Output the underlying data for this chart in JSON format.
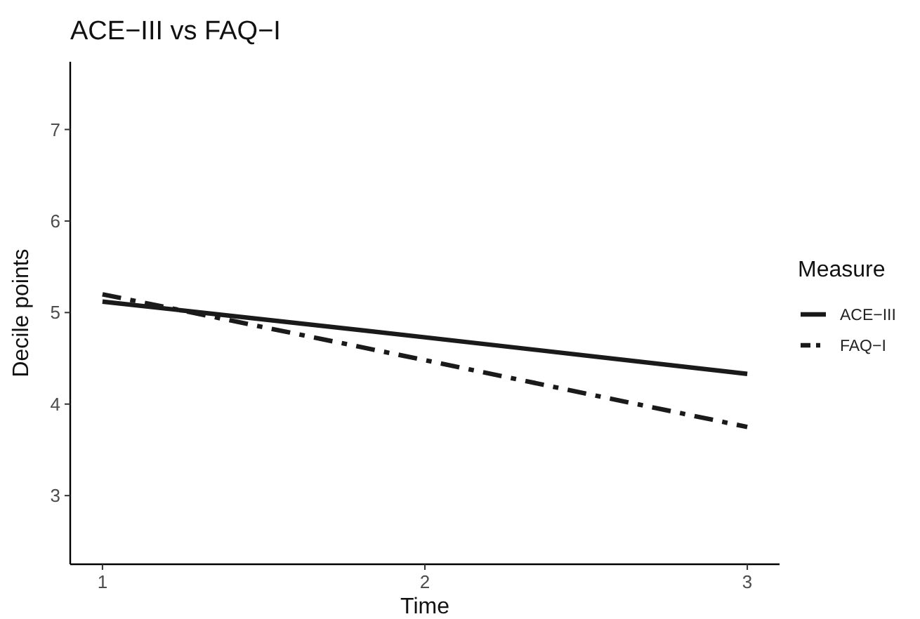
{
  "chart_data": {
    "type": "line",
    "title": "ACE−III vs FAQ−I",
    "xlabel": "Time",
    "ylabel": "Decile points",
    "legend_title": "Measure",
    "legend": "right",
    "grid": false,
    "x": [
      1,
      2,
      3
    ],
    "xlim": [
      0.9,
      3.1
    ],
    "xticks": [
      1,
      2,
      3
    ],
    "ylim": [
      2.25,
      7.74
    ],
    "yticks": [
      3,
      4,
      5,
      6,
      7
    ],
    "series": [
      {
        "name": "ACE−III",
        "color": "#1a1a1a",
        "line_style": "solid",
        "values": [
          5.12,
          4.73,
          4.33
        ]
      },
      {
        "name": "FAQ−I",
        "color": "#1a1a1a",
        "line_style": "dashdot",
        "values": [
          5.2,
          4.48,
          3.75
        ]
      }
    ]
  }
}
